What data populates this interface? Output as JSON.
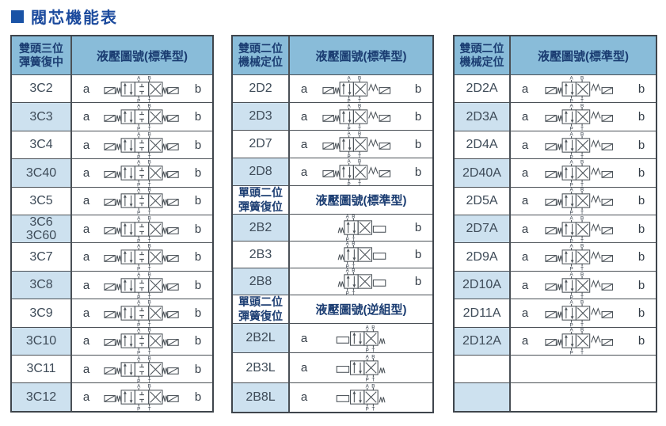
{
  "page": {
    "title": "閥芯機能表"
  },
  "colors": {
    "header_blue": "#89bcd9",
    "row_shaded_blue": "#cde1ef",
    "border": "#4a5056",
    "navy_text": "#1b3d72",
    "title_blue": "#1b4a9d",
    "title_marker": "#1a53a6"
  },
  "diagram_labels": {
    "top": [
      "A",
      "B"
    ],
    "bottom": [
      "P",
      "T"
    ]
  },
  "tables": [
    {
      "name": "three-position-spring-centered",
      "sections": [
        {
          "header": {
            "title_lines": [
              "雙頭三位",
              "彈簧復中"
            ],
            "diagram_title": "液壓圖號(標準型)",
            "variant": "blue"
          },
          "rows": [
            {
              "code_lines": [
                "3C2"
              ],
              "left_label": "a",
              "right_label": "b",
              "symbol": "valve-3pos-spring-centered",
              "shaded": false
            },
            {
              "code_lines": [
                "3C3"
              ],
              "left_label": "a",
              "right_label": "b",
              "symbol": "valve-3pos-spring-centered",
              "shaded": true
            },
            {
              "code_lines": [
                "3C4"
              ],
              "left_label": "a",
              "right_label": "b",
              "symbol": "valve-3pos-spring-centered",
              "shaded": false
            },
            {
              "code_lines": [
                "3C40"
              ],
              "left_label": "a",
              "right_label": "b",
              "symbol": "valve-3pos-spring-centered",
              "shaded": true
            },
            {
              "code_lines": [
                "3C5"
              ],
              "left_label": "a",
              "right_label": "b",
              "symbol": "valve-3pos-spring-centered",
              "shaded": false
            },
            {
              "code_lines": [
                "3C6",
                "3C60"
              ],
              "left_label": "a",
              "right_label": "b",
              "symbol": "valve-3pos-spring-centered",
              "shaded": true
            },
            {
              "code_lines": [
                "3C7"
              ],
              "left_label": "a",
              "right_label": "b",
              "symbol": "valve-3pos-spring-centered",
              "shaded": false
            },
            {
              "code_lines": [
                "3C8"
              ],
              "left_label": "a",
              "right_label": "b",
              "symbol": "valve-3pos-spring-centered",
              "shaded": true
            },
            {
              "code_lines": [
                "3C9"
              ],
              "left_label": "a",
              "right_label": "b",
              "symbol": "valve-3pos-spring-centered",
              "shaded": false
            },
            {
              "code_lines": [
                "3C10"
              ],
              "left_label": "a",
              "right_label": "b",
              "symbol": "valve-3pos-spring-centered",
              "shaded": true
            },
            {
              "code_lines": [
                "3C11"
              ],
              "left_label": "a",
              "right_label": "b",
              "symbol": "valve-3pos-spring-centered",
              "shaded": false
            },
            {
              "code_lines": [
                "3C12"
              ],
              "left_label": "a",
              "right_label": "b",
              "symbol": "valve-3pos-spring-centered",
              "shaded": true
            }
          ]
        }
      ]
    },
    {
      "name": "two-position",
      "sections": [
        {
          "header": {
            "title_lines": [
              "雙頭二位",
              "機械定位"
            ],
            "diagram_title": "液壓圖號(標準型)",
            "variant": "blue"
          },
          "rows": [
            {
              "code_lines": [
                "2D2"
              ],
              "left_label": "a",
              "right_label": "b",
              "symbol": "valve-2pos-detent",
              "shaded": false
            },
            {
              "code_lines": [
                "2D3"
              ],
              "left_label": "a",
              "right_label": "b",
              "symbol": "valve-2pos-detent",
              "shaded": true
            },
            {
              "code_lines": [
                "2D7"
              ],
              "left_label": "a",
              "right_label": "b",
              "symbol": "valve-2pos-detent",
              "shaded": false
            },
            {
              "code_lines": [
                "2D8"
              ],
              "left_label": "a",
              "right_label": "b",
              "symbol": "valve-2pos-detent",
              "shaded": true
            }
          ]
        },
        {
          "header": {
            "title_lines": [
              "單頭二位",
              "彈簧復位"
            ],
            "diagram_title": "液壓圖號(標準型)",
            "variant": "white"
          },
          "rows": [
            {
              "code_lines": [
                "2B2"
              ],
              "left_label": "",
              "right_label": "b",
              "symbol": "valve-2pos-spring-return",
              "shaded": true
            },
            {
              "code_lines": [
                "2B3"
              ],
              "left_label": "",
              "right_label": "b",
              "symbol": "valve-2pos-spring-return",
              "shaded": false
            },
            {
              "code_lines": [
                "2B8"
              ],
              "left_label": "",
              "right_label": "b",
              "symbol": "valve-2pos-spring-return",
              "shaded": true
            }
          ]
        },
        {
          "header": {
            "title_lines": [
              "單頭二位",
              "彈簧復位"
            ],
            "diagram_title": "液壓圖號(逆組型)",
            "variant": "white"
          },
          "rows": [
            {
              "code_lines": [
                "2B2L"
              ],
              "left_label": "a",
              "right_label": "",
              "symbol": "valve-2pos-spring-return-reverse",
              "shaded": true
            },
            {
              "code_lines": [
                "2B3L"
              ],
              "left_label": "a",
              "right_label": "",
              "symbol": "valve-2pos-spring-return-reverse",
              "shaded": false
            },
            {
              "code_lines": [
                "2B8L"
              ],
              "left_label": "a",
              "right_label": "",
              "symbol": "valve-2pos-spring-return-reverse",
              "shaded": true
            }
          ]
        }
      ]
    },
    {
      "name": "two-position-a-series",
      "sections": [
        {
          "header": {
            "title_lines": [
              "雙頭二位",
              "機械定位"
            ],
            "diagram_title": "液壓圖號(標準型)",
            "variant": "blue"
          },
          "rows": [
            {
              "code_lines": [
                "2D2A"
              ],
              "left_label": "a",
              "right_label": "b",
              "symbol": "valve-2pos-detent",
              "shaded": false
            },
            {
              "code_lines": [
                "2D3A"
              ],
              "left_label": "a",
              "right_label": "b",
              "symbol": "valve-2pos-detent",
              "shaded": true
            },
            {
              "code_lines": [
                "2D4A"
              ],
              "left_label": "a",
              "right_label": "b",
              "symbol": "valve-2pos-detent",
              "shaded": false
            },
            {
              "code_lines": [
                "2D40A"
              ],
              "left_label": "a",
              "right_label": "b",
              "symbol": "valve-2pos-detent",
              "shaded": true
            },
            {
              "code_lines": [
                "2D5A"
              ],
              "left_label": "a",
              "right_label": "b",
              "symbol": "valve-2pos-detent",
              "shaded": false
            },
            {
              "code_lines": [
                "2D7A"
              ],
              "left_label": "a",
              "right_label": "b",
              "symbol": "valve-2pos-detent",
              "shaded": true
            },
            {
              "code_lines": [
                "2D9A"
              ],
              "left_label": "a",
              "right_label": "b",
              "symbol": "valve-2pos-detent",
              "shaded": false
            },
            {
              "code_lines": [
                "2D10A"
              ],
              "left_label": "a",
              "right_label": "b",
              "symbol": "valve-2pos-detent",
              "shaded": true
            },
            {
              "code_lines": [
                "2D11A"
              ],
              "left_label": "a",
              "right_label": "b",
              "symbol": "valve-2pos-detent",
              "shaded": false
            },
            {
              "code_lines": [
                "2D12A"
              ],
              "left_label": "a",
              "right_label": "b",
              "symbol": "valve-2pos-detent",
              "shaded": true
            },
            {
              "code_lines": [],
              "left_label": "",
              "right_label": "",
              "symbol": "",
              "shaded": false
            },
            {
              "code_lines": [],
              "left_label": "",
              "right_label": "",
              "symbol": "",
              "shaded": true
            }
          ]
        }
      ]
    }
  ]
}
